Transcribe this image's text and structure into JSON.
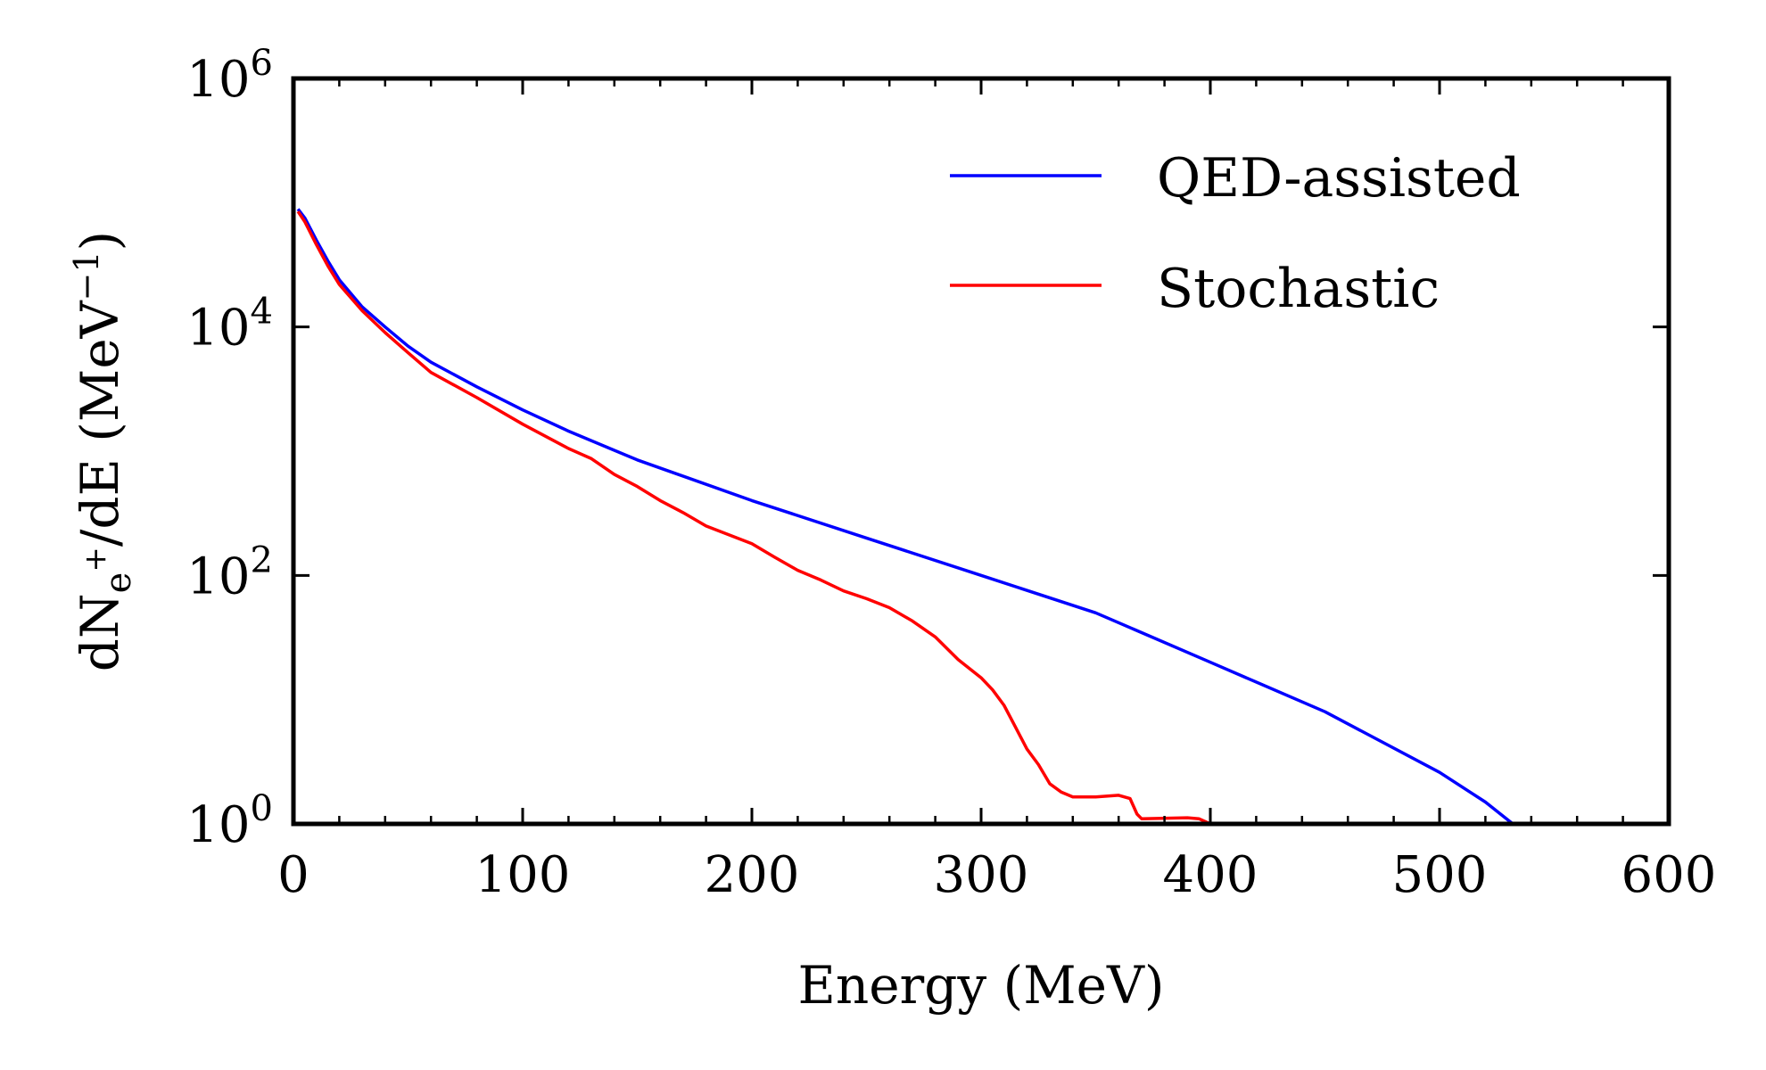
{
  "chart_data": {
    "type": "line",
    "xlabel": "Energy (MeV)",
    "ylabel": {
      "prefix": "dN",
      "sub": "e",
      "sup": "+",
      "middle": "/dE (MeV",
      "exp": "−1",
      "suffix": ")"
    },
    "xlim": [
      0,
      600
    ],
    "ylim": [
      1,
      1000000
    ],
    "yscale": "log",
    "xticks": [
      "0",
      "100",
      "200",
      "300",
      "400",
      "500",
      "600"
    ],
    "yticks": [
      {
        "base": "10",
        "exp": "0"
      },
      {
        "base": "10",
        "exp": "2"
      },
      {
        "base": "10",
        "exp": "4"
      },
      {
        "base": "10",
        "exp": "6"
      }
    ],
    "legend_position": "top-right",
    "series": [
      {
        "name": "QED-assisted",
        "color": "#0000ff",
        "points": [
          [
            2,
            89000
          ],
          [
            5,
            75000
          ],
          [
            10,
            50000
          ],
          [
            15,
            34000
          ],
          [
            20,
            24000
          ],
          [
            30,
            14500
          ],
          [
            40,
            10000
          ],
          [
            50,
            7000
          ],
          [
            60,
            5200
          ],
          [
            80,
            3300
          ],
          [
            100,
            2150
          ],
          [
            120,
            1450
          ],
          [
            150,
            850
          ],
          [
            200,
            400
          ],
          [
            250,
            200
          ],
          [
            300,
            100
          ],
          [
            350,
            50
          ],
          [
            400,
            20
          ],
          [
            450,
            8
          ],
          [
            500,
            2.6
          ],
          [
            520,
            1.5
          ],
          [
            532,
            1.0
          ]
        ]
      },
      {
        "name": "Stochastic",
        "color": "#ff0000",
        "points": [
          [
            2,
            85000
          ],
          [
            5,
            70000
          ],
          [
            10,
            46000
          ],
          [
            15,
            31000
          ],
          [
            20,
            22000
          ],
          [
            30,
            13500
          ],
          [
            40,
            9000
          ],
          [
            50,
            6200
          ],
          [
            60,
            4300
          ],
          [
            80,
            2700
          ],
          [
            100,
            1650
          ],
          [
            120,
            1050
          ],
          [
            130,
            870
          ],
          [
            140,
            650
          ],
          [
            150,
            520
          ],
          [
            160,
            400
          ],
          [
            170,
            320
          ],
          [
            180,
            250
          ],
          [
            200,
            180
          ],
          [
            210,
            140
          ],
          [
            220,
            110
          ],
          [
            230,
            92
          ],
          [
            240,
            75
          ],
          [
            250,
            65
          ],
          [
            260,
            55
          ],
          [
            270,
            43
          ],
          [
            280,
            32
          ],
          [
            290,
            21
          ],
          [
            300,
            15
          ],
          [
            305,
            12
          ],
          [
            310,
            9
          ],
          [
            315,
            6
          ],
          [
            320,
            4
          ],
          [
            325,
            3
          ],
          [
            330,
            2.1
          ],
          [
            335,
            1.8
          ],
          [
            340,
            1.65
          ],
          [
            350,
            1.65
          ],
          [
            360,
            1.7
          ],
          [
            365,
            1.6
          ],
          [
            368,
            1.2
          ],
          [
            370,
            1.1
          ],
          [
            390,
            1.12
          ],
          [
            395,
            1.1
          ],
          [
            400,
            1.0
          ]
        ]
      }
    ]
  }
}
